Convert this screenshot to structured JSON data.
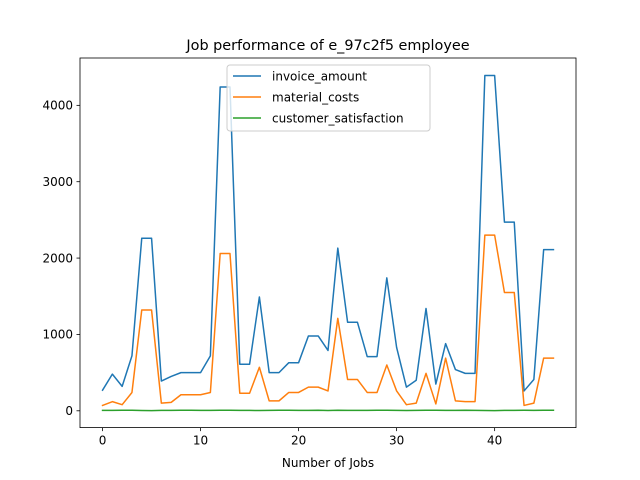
{
  "chart_data": {
    "type": "line",
    "title": "Job performance of e_97c2f5 employee",
    "xlabel": "Number of Jobs",
    "ylabel": "",
    "xlim": [
      -2.3,
      48.3
    ],
    "ylim": [
      -220,
      4620
    ],
    "xticks": [
      0,
      10,
      20,
      30,
      40
    ],
    "yticks": [
      0,
      1000,
      2000,
      3000,
      4000
    ],
    "grid": false,
    "legend_position": "upper-center",
    "x": [
      0,
      1,
      2,
      3,
      4,
      5,
      6,
      7,
      8,
      9,
      10,
      11,
      12,
      13,
      14,
      15,
      16,
      17,
      18,
      19,
      20,
      21,
      22,
      23,
      24,
      25,
      26,
      27,
      28,
      29,
      30,
      31,
      32,
      33,
      34,
      35,
      36,
      37,
      38,
      39,
      40,
      41,
      42,
      43,
      44,
      45,
      46
    ],
    "series": [
      {
        "name": "invoice_amount",
        "color": "#1f77b4",
        "values": [
          270,
          480,
          320,
          720,
          2260,
          2260,
          390,
          450,
          500,
          500,
          500,
          720,
          4240,
          4240,
          610,
          610,
          1490,
          500,
          500,
          630,
          630,
          980,
          980,
          790,
          2130,
          1160,
          1160,
          710,
          710,
          1740,
          830,
          310,
          400,
          1340,
          350,
          880,
          540,
          490,
          490,
          4390,
          4390,
          2470,
          2470,
          260,
          410,
          2110,
          2110
        ]
      },
      {
        "name": "material_costs",
        "color": "#ff7f0e",
        "values": [
          70,
          120,
          80,
          240,
          1320,
          1320,
          100,
          110,
          210,
          210,
          210,
          240,
          2060,
          2060,
          230,
          230,
          570,
          130,
          130,
          240,
          240,
          310,
          310,
          260,
          1210,
          410,
          410,
          240,
          240,
          600,
          260,
          80,
          100,
          490,
          90,
          690,
          130,
          120,
          120,
          2300,
          2300,
          1550,
          1550,
          70,
          100,
          690,
          690
        ]
      },
      {
        "name": "customer_satisfaction",
        "color": "#2ca02c",
        "values": [
          5,
          6,
          8,
          7,
          4,
          3,
          5,
          6,
          7,
          8,
          6,
          5,
          7,
          8,
          6,
          5,
          4,
          6,
          7,
          8,
          6,
          5,
          7,
          4,
          8,
          6,
          5,
          6,
          7,
          8,
          6,
          4,
          5,
          7,
          8,
          6,
          5,
          7,
          6,
          4,
          3,
          5,
          6,
          7,
          6,
          8,
          7
        ]
      }
    ]
  }
}
